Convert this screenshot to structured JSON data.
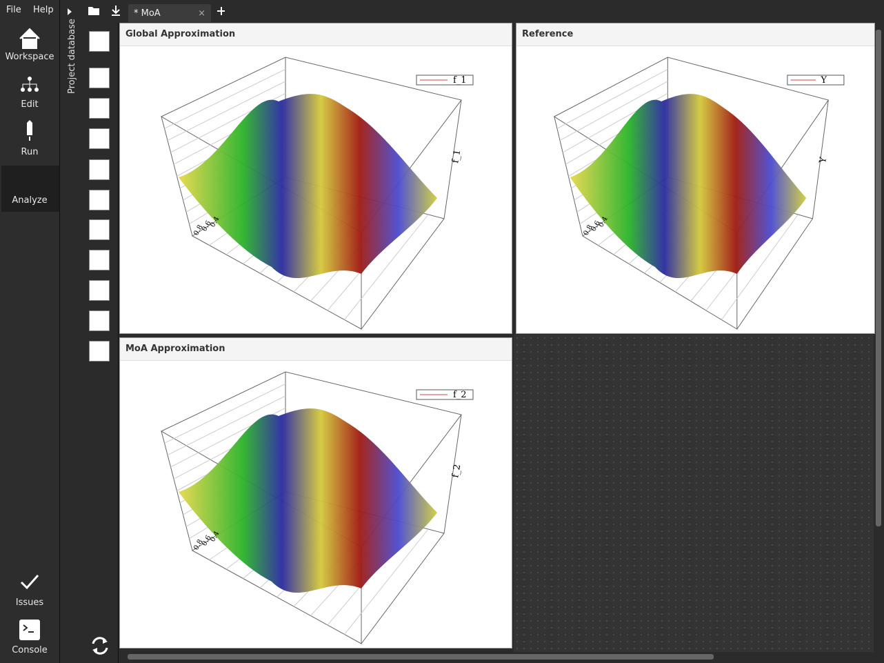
{
  "menu": [
    "File",
    "Help"
  ],
  "nav": [
    "Workspace",
    "Edit",
    "Run",
    "Analyze"
  ],
  "bottom_nav": [
    "Issues",
    "Console"
  ],
  "side_panel": "Project database",
  "tabs": [
    "* MoA"
  ],
  "panels": [
    {
      "title": "Global Approximation",
      "legend": "f_1",
      "z_label": "f_1",
      "x_ticks": [
        "0.8",
        "0.6",
        "0.4"
      ]
    },
    {
      "title": "Reference",
      "legend": "Y",
      "z_label": "Y",
      "x_ticks": [
        "0.8",
        "0.6",
        "0.4"
      ]
    },
    {
      "title": "MoA Approximation",
      "legend": "f_2",
      "z_label": "f_2",
      "x_ticks": [
        "0.8",
        "0.6",
        "0.4"
      ]
    }
  ]
}
